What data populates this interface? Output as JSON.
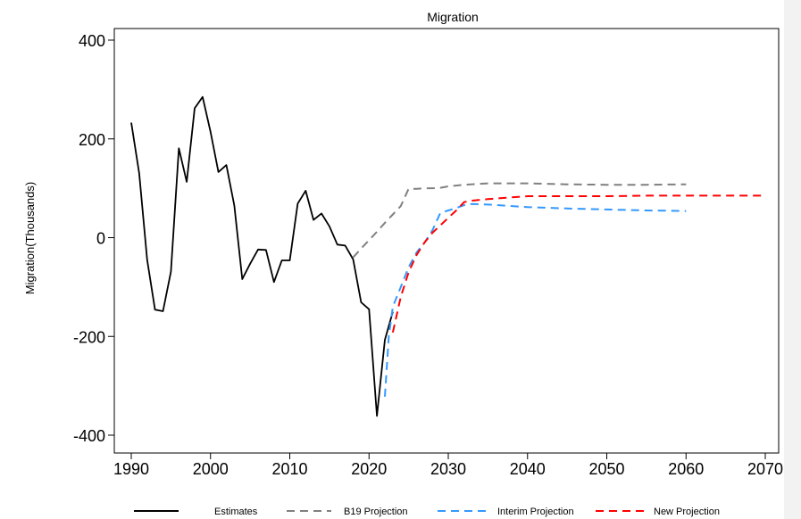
{
  "chart_data": {
    "type": "line",
    "title": "Migration",
    "xlabel": "",
    "ylabel": "Migration(Thousands)",
    "xlim": [
      1989,
      2071
    ],
    "ylim": [
      -437,
      437
    ],
    "x_ticks": [
      1990,
      2000,
      2010,
      2020,
      2030,
      2040,
      2050,
      2060,
      2070
    ],
    "y_ticks": [
      400,
      200,
      0,
      -200,
      -400
    ],
    "y_tick_labels": [
      "400",
      "200",
      "0",
      "-200",
      "-400"
    ],
    "grid": false,
    "legend_position": "bottom",
    "series": [
      {
        "name": "Estimates",
        "color": "#000000",
        "dash": "solid",
        "x": [
          1990,
          1991,
          1992,
          1993,
          1994,
          1995,
          1996,
          1997,
          1998,
          1999,
          2000,
          2001,
          2002,
          2003,
          2004,
          2005,
          2006,
          2007,
          2008,
          2009,
          2010,
          2011,
          2012,
          2013,
          2014,
          2015,
          2016,
          2017,
          2018,
          2019,
          2020,
          2021,
          2022,
          2023
        ],
        "y": [
          233,
          130,
          -45,
          -146,
          -149,
          -69,
          181,
          113,
          262,
          285,
          214,
          133,
          147,
          65,
          -84,
          -53,
          -24,
          -25,
          -90,
          -46,
          -46,
          69,
          95,
          36,
          49,
          23,
          -14,
          -16,
          -44,
          -131,
          -145,
          -361,
          -207,
          -150
        ]
      },
      {
        "name": "B19 Projection",
        "color": "#808080",
        "dash": "dashed",
        "x": [
          2018,
          2019,
          2020,
          2021,
          2022,
          2023,
          2024,
          2025,
          2026,
          2027,
          2028,
          2029,
          2030,
          2032,
          2035,
          2040,
          2045,
          2050,
          2055,
          2060
        ],
        "y": [
          -40,
          -22,
          -5,
          12,
          30,
          47,
          64,
          99,
          99,
          100,
          100,
          101,
          104,
          107,
          110,
          110,
          108,
          107,
          107,
          108
        ]
      },
      {
        "name": "Interim Projection",
        "color": "#3399ff",
        "dash": "dashed",
        "x": [
          2022,
          2022.5,
          2023,
          2024,
          2025,
          2026,
          2027,
          2028,
          2029,
          2030,
          2031,
          2032,
          2033,
          2035,
          2040,
          2045,
          2050,
          2055,
          2060
        ],
        "y": [
          -322,
          -200,
          -140,
          -100,
          -60,
          -30,
          -10,
          15,
          50,
          55,
          60,
          66,
          68,
          67,
          62,
          59,
          57,
          55,
          54
        ]
      },
      {
        "name": "New Projection",
        "color": "#ff0000",
        "dash": "dashed",
        "x": [
          2023,
          2024,
          2025,
          2026,
          2027,
          2028,
          2029,
          2030,
          2031,
          2032,
          2033,
          2035,
          2040,
          2045,
          2050,
          2055,
          2060,
          2065,
          2070
        ],
        "y": [
          -192,
          -120,
          -70,
          -35,
          -10,
          10,
          25,
          40,
          55,
          72,
          75,
          78,
          84,
          84,
          84,
          85,
          85,
          85,
          85
        ]
      }
    ]
  },
  "colors": {
    "background": "#ffffff",
    "right_strip": "#f2f2f2"
  }
}
